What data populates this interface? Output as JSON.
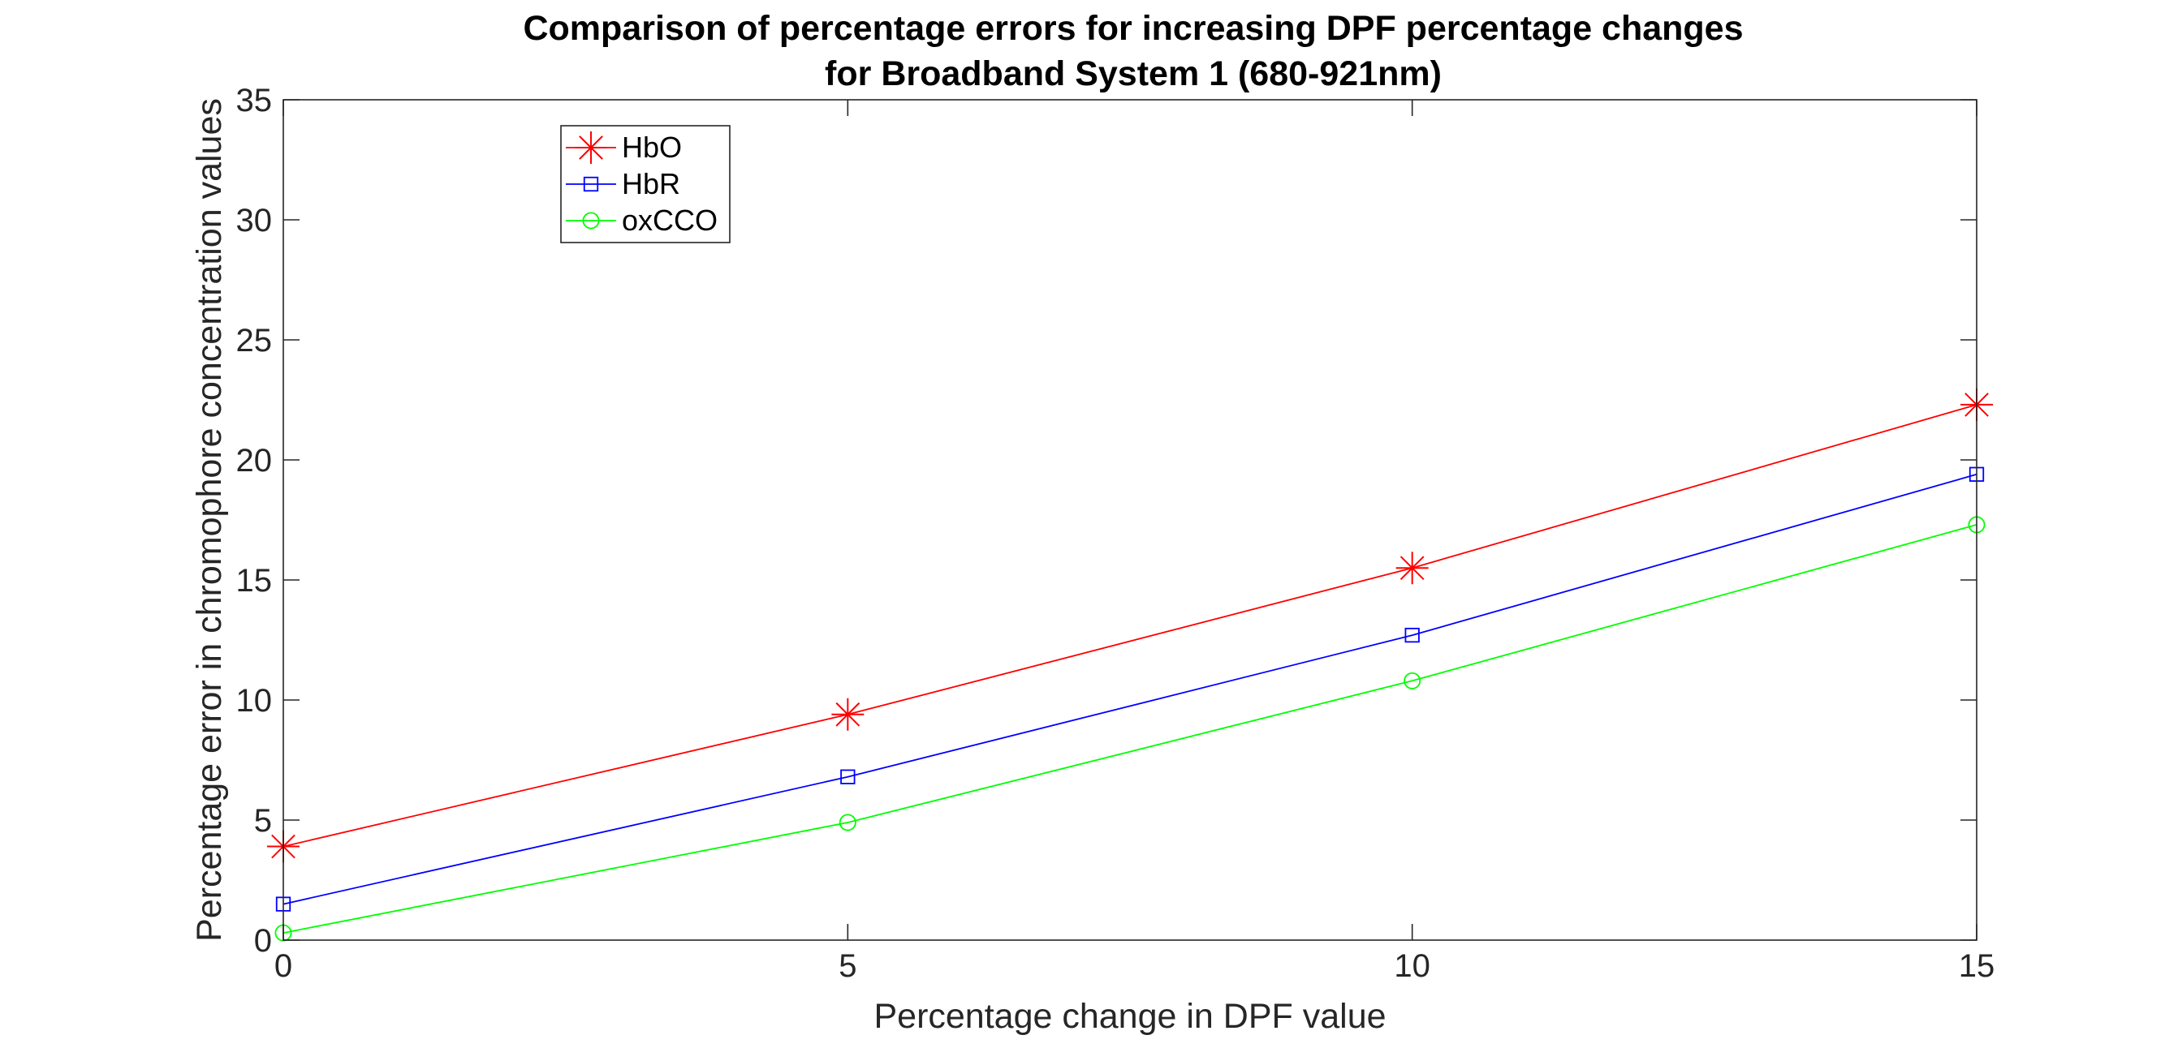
{
  "chart_data": {
    "type": "line",
    "title": [
      "Comparison of percentage errors for increasing DPF percentage changes",
      "for Broadband System 1 (680-921nm)"
    ],
    "xlabel": "Percentage change in DPF value",
    "ylabel": "Percentage error in chromophore concentration values",
    "x": [
      0,
      5,
      10,
      15
    ],
    "xlim": [
      0,
      15
    ],
    "ylim": [
      0,
      35
    ],
    "xticks": [
      0,
      5,
      10,
      15
    ],
    "yticks": [
      0,
      5,
      10,
      15,
      20,
      25,
      30,
      35
    ],
    "grid": false,
    "legend_position": "top-left",
    "series": [
      {
        "name": "HbO",
        "values": [
          3.9,
          9.4,
          15.5,
          22.3
        ],
        "color": "#ff0000",
        "marker": "asterisk"
      },
      {
        "name": "HbR",
        "values": [
          1.5,
          6.8,
          12.7,
          19.4
        ],
        "color": "#0000ff",
        "marker": "square"
      },
      {
        "name": "oxCCO",
        "values": [
          0.3,
          4.9,
          10.8,
          17.3
        ],
        "color": "#00ff00",
        "marker": "circle"
      }
    ]
  }
}
